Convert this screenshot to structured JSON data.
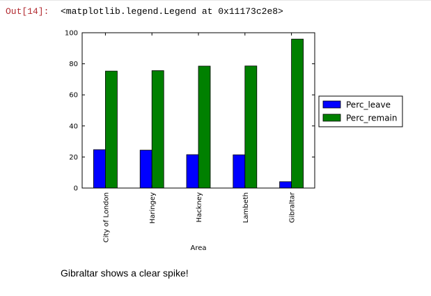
{
  "output_cell": {
    "prompt": "Out[14]:",
    "text": "<matplotlib.legend.Legend at 0x11173c2e8>"
  },
  "chart_data": {
    "type": "bar",
    "categories": [
      "City of London",
      "Haringey",
      "Hackney",
      "Lambeth",
      "Gibraltar"
    ],
    "series": [
      {
        "name": "Perc_leave",
        "values": [
          24.7,
          24.4,
          21.5,
          21.4,
          4.1
        ],
        "color": "#0000ff"
      },
      {
        "name": "Perc_remain",
        "values": [
          75.3,
          75.6,
          78.5,
          78.6,
          95.9
        ],
        "color": "#008000"
      }
    ],
    "xlabel": "Area",
    "ylabel": "",
    "ylim": [
      0,
      100
    ],
    "yticks": [
      0,
      20,
      40,
      60,
      80,
      100
    ],
    "grid": false,
    "legend_position": "outside-right"
  },
  "note": "Gibraltar shows a clear spike!"
}
